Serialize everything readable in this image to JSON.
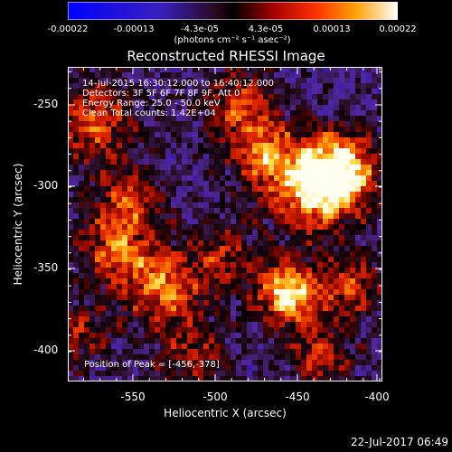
{
  "colorbar": {
    "ticks": [
      "-0.00022",
      "-0.00013",
      "-4.3e-05",
      "4.3e-05",
      "0.00013",
      "0.00022"
    ],
    "units": "(photons cm⁻² s⁻¹ asec⁻²)"
  },
  "plot": {
    "title": "Reconstructed RHESSI Image",
    "annotations": {
      "time": "14-Jul-2015 16:30:12.000 to 16:40:12.000",
      "detectors": "Detectors: 3F 5F 6F 7F 8F 9F, Att 0",
      "energy": "Energy Range: 25.0 - 50.0 keV",
      "method": "Clean      Total counts: 1.42E+04",
      "peak": "Position of Peak = [-456,-378]"
    },
    "xlabel": "Heliocentric X (arcsec)",
    "ylabel": "Heliocentric Y (arcsec)",
    "xticks": [
      "-550",
      "-500",
      "-450",
      "-400"
    ],
    "yticks": [
      "-250",
      "-300",
      "-350",
      "-400"
    ]
  },
  "footer": {
    "timestamp": "22-Jul-2017 06:49"
  }
}
